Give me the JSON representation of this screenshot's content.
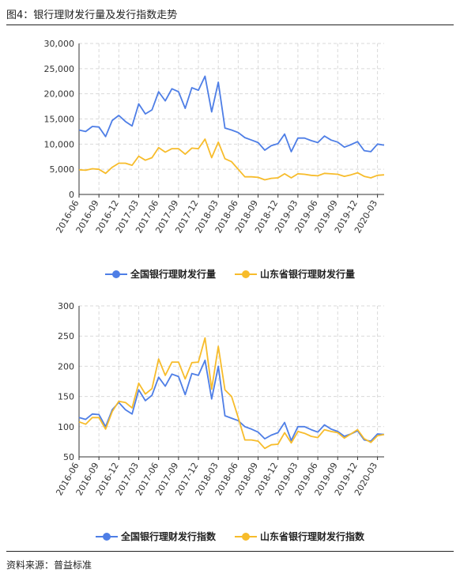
{
  "figure": {
    "title": "图4：银行理财发行量及发行指数走势",
    "source": "资料来源：普益标准"
  },
  "colors": {
    "national": "#4e7ee6",
    "shandong": "#f7bc2b"
  },
  "chart_data": [
    {
      "type": "line",
      "title": "",
      "xlabel": "",
      "ylabel": "",
      "ylim": [
        0,
        30000
      ],
      "yticks": [
        0,
        5000,
        10000,
        15000,
        20000,
        25000,
        30000
      ],
      "ytick_labels": [
        "0",
        "5,000",
        "10,000",
        "15,000",
        "20,000",
        "25,000",
        "30,000"
      ],
      "grid": true,
      "legend_position": "bottom-center",
      "x": [
        "2016-06",
        "2016-07",
        "2016-08",
        "2016-09",
        "2016-10",
        "2016-11",
        "2016-12",
        "2017-01",
        "2017-02",
        "2017-03",
        "2017-04",
        "2017-05",
        "2017-06",
        "2017-07",
        "2017-08",
        "2017-09",
        "2017-10",
        "2017-11",
        "2017-12",
        "2018-01",
        "2018-02",
        "2018-03",
        "2018-04",
        "2018-05",
        "2018-06",
        "2018-07",
        "2018-08",
        "2018-09",
        "2018-10",
        "2018-11",
        "2018-12",
        "2019-01",
        "2019-02",
        "2019-03",
        "2019-04",
        "2019-05",
        "2019-06",
        "2019-07",
        "2019-08",
        "2019-09",
        "2019-10",
        "2019-11",
        "2019-12",
        "2020-01",
        "2020-02",
        "2020-03",
        "2020-04"
      ],
      "x_tick_labels": [
        "2016-06",
        "2016-09",
        "2016-12",
        "2017-03",
        "2017-06",
        "2017-09",
        "2017-12",
        "2018-03",
        "2018-06",
        "2018-09",
        "2018-12",
        "2019-03",
        "2019-06",
        "2019-09",
        "2019-12",
        "2020-03"
      ],
      "series": [
        {
          "name": "全国银行理财发行量",
          "color": "#4e7ee6",
          "values": [
            12800,
            12500,
            13500,
            13400,
            11500,
            14700,
            15700,
            14500,
            13600,
            18000,
            16000,
            16800,
            20400,
            18600,
            21000,
            20400,
            17100,
            21200,
            20700,
            23500,
            16400,
            22300,
            13200,
            12800,
            12300,
            11300,
            10800,
            10300,
            8800,
            9700,
            10100,
            12000,
            8500,
            11200,
            11200,
            10700,
            10300,
            11600,
            10800,
            10400,
            9400,
            9900,
            10500,
            8700,
            8500,
            10000,
            9800
          ]
        },
        {
          "name": "山东省银行理财发行量",
          "color": "#f7bc2b",
          "values": [
            4900,
            4800,
            5100,
            5000,
            4200,
            5400,
            6200,
            6200,
            5800,
            7600,
            6800,
            7300,
            9300,
            8400,
            9100,
            9100,
            8000,
            9200,
            9100,
            11000,
            7300,
            10400,
            7100,
            6500,
            5000,
            3500,
            3500,
            3400,
            2900,
            3200,
            3300,
            4100,
            3300,
            4100,
            4000,
            3800,
            3700,
            4200,
            4100,
            4000,
            3600,
            3900,
            4300,
            3600,
            3300,
            3800,
            3900
          ]
        }
      ]
    },
    {
      "type": "line",
      "title": "",
      "xlabel": "",
      "ylabel": "",
      "ylim": [
        50,
        300
      ],
      "yticks": [
        50,
        100,
        150,
        200,
        250,
        300
      ],
      "ytick_labels": [
        "50",
        "100",
        "150",
        "200",
        "250",
        "300"
      ],
      "grid": true,
      "legend_position": "bottom-center",
      "x": [
        "2016-06",
        "2016-07",
        "2016-08",
        "2016-09",
        "2016-10",
        "2016-11",
        "2016-12",
        "2017-01",
        "2017-02",
        "2017-03",
        "2017-04",
        "2017-05",
        "2017-06",
        "2017-07",
        "2017-08",
        "2017-09",
        "2017-10",
        "2017-11",
        "2017-12",
        "2018-01",
        "2018-02",
        "2018-03",
        "2018-04",
        "2018-05",
        "2018-06",
        "2018-07",
        "2018-08",
        "2018-09",
        "2018-10",
        "2018-11",
        "2018-12",
        "2019-01",
        "2019-02",
        "2019-03",
        "2019-04",
        "2019-05",
        "2019-06",
        "2019-07",
        "2019-08",
        "2019-09",
        "2019-10",
        "2019-11",
        "2019-12",
        "2020-01",
        "2020-02",
        "2020-03",
        "2020-04"
      ],
      "x_tick_labels": [
        "2016-06",
        "2016-09",
        "2016-12",
        "2017-03",
        "2017-06",
        "2017-09",
        "2017-12",
        "2018-03",
        "2018-06",
        "2018-09",
        "2018-12",
        "2019-03",
        "2019-06",
        "2019-09",
        "2019-12",
        "2020-03"
      ],
      "series": [
        {
          "name": "全国银行理财指数",
          "color": "#4e7ee6",
          "values": [
            115,
            112,
            121,
            120,
            100,
            128,
            140,
            128,
            121,
            161,
            143,
            152,
            182,
            167,
            187,
            183,
            153,
            188,
            185,
            210,
            146,
            200,
            118,
            114,
            110,
            100,
            96,
            91,
            80,
            86,
            90,
            107,
            77,
            100,
            100,
            95,
            91,
            103,
            96,
            92,
            84,
            88,
            93,
            78,
            76,
            88,
            87
          ]
        },
        {
          "name": "山东省银行理财指数",
          "color": "#f7bc2b",
          "values": [
            108,
            104,
            115,
            115,
            96,
            125,
            142,
            140,
            131,
            172,
            154,
            163,
            212,
            185,
            207,
            207,
            179,
            206,
            207,
            247,
            162,
            233,
            161,
            150,
            115,
            78,
            78,
            76,
            64,
            70,
            71,
            90,
            73,
            92,
            89,
            84,
            82,
            95,
            92,
            90,
            81,
            88,
            95,
            80,
            74,
            85,
            87
          ]
        }
      ]
    }
  ],
  "legends": [
    {
      "items": [
        {
          "label": "全国银行理财发行量"
        },
        {
          "label": "山东省银行理财发行量"
        }
      ]
    },
    {
      "items": [
        {
          "label": "全国银行理财发行指数"
        },
        {
          "label": "山东省银行理财发行指数"
        }
      ]
    }
  ]
}
